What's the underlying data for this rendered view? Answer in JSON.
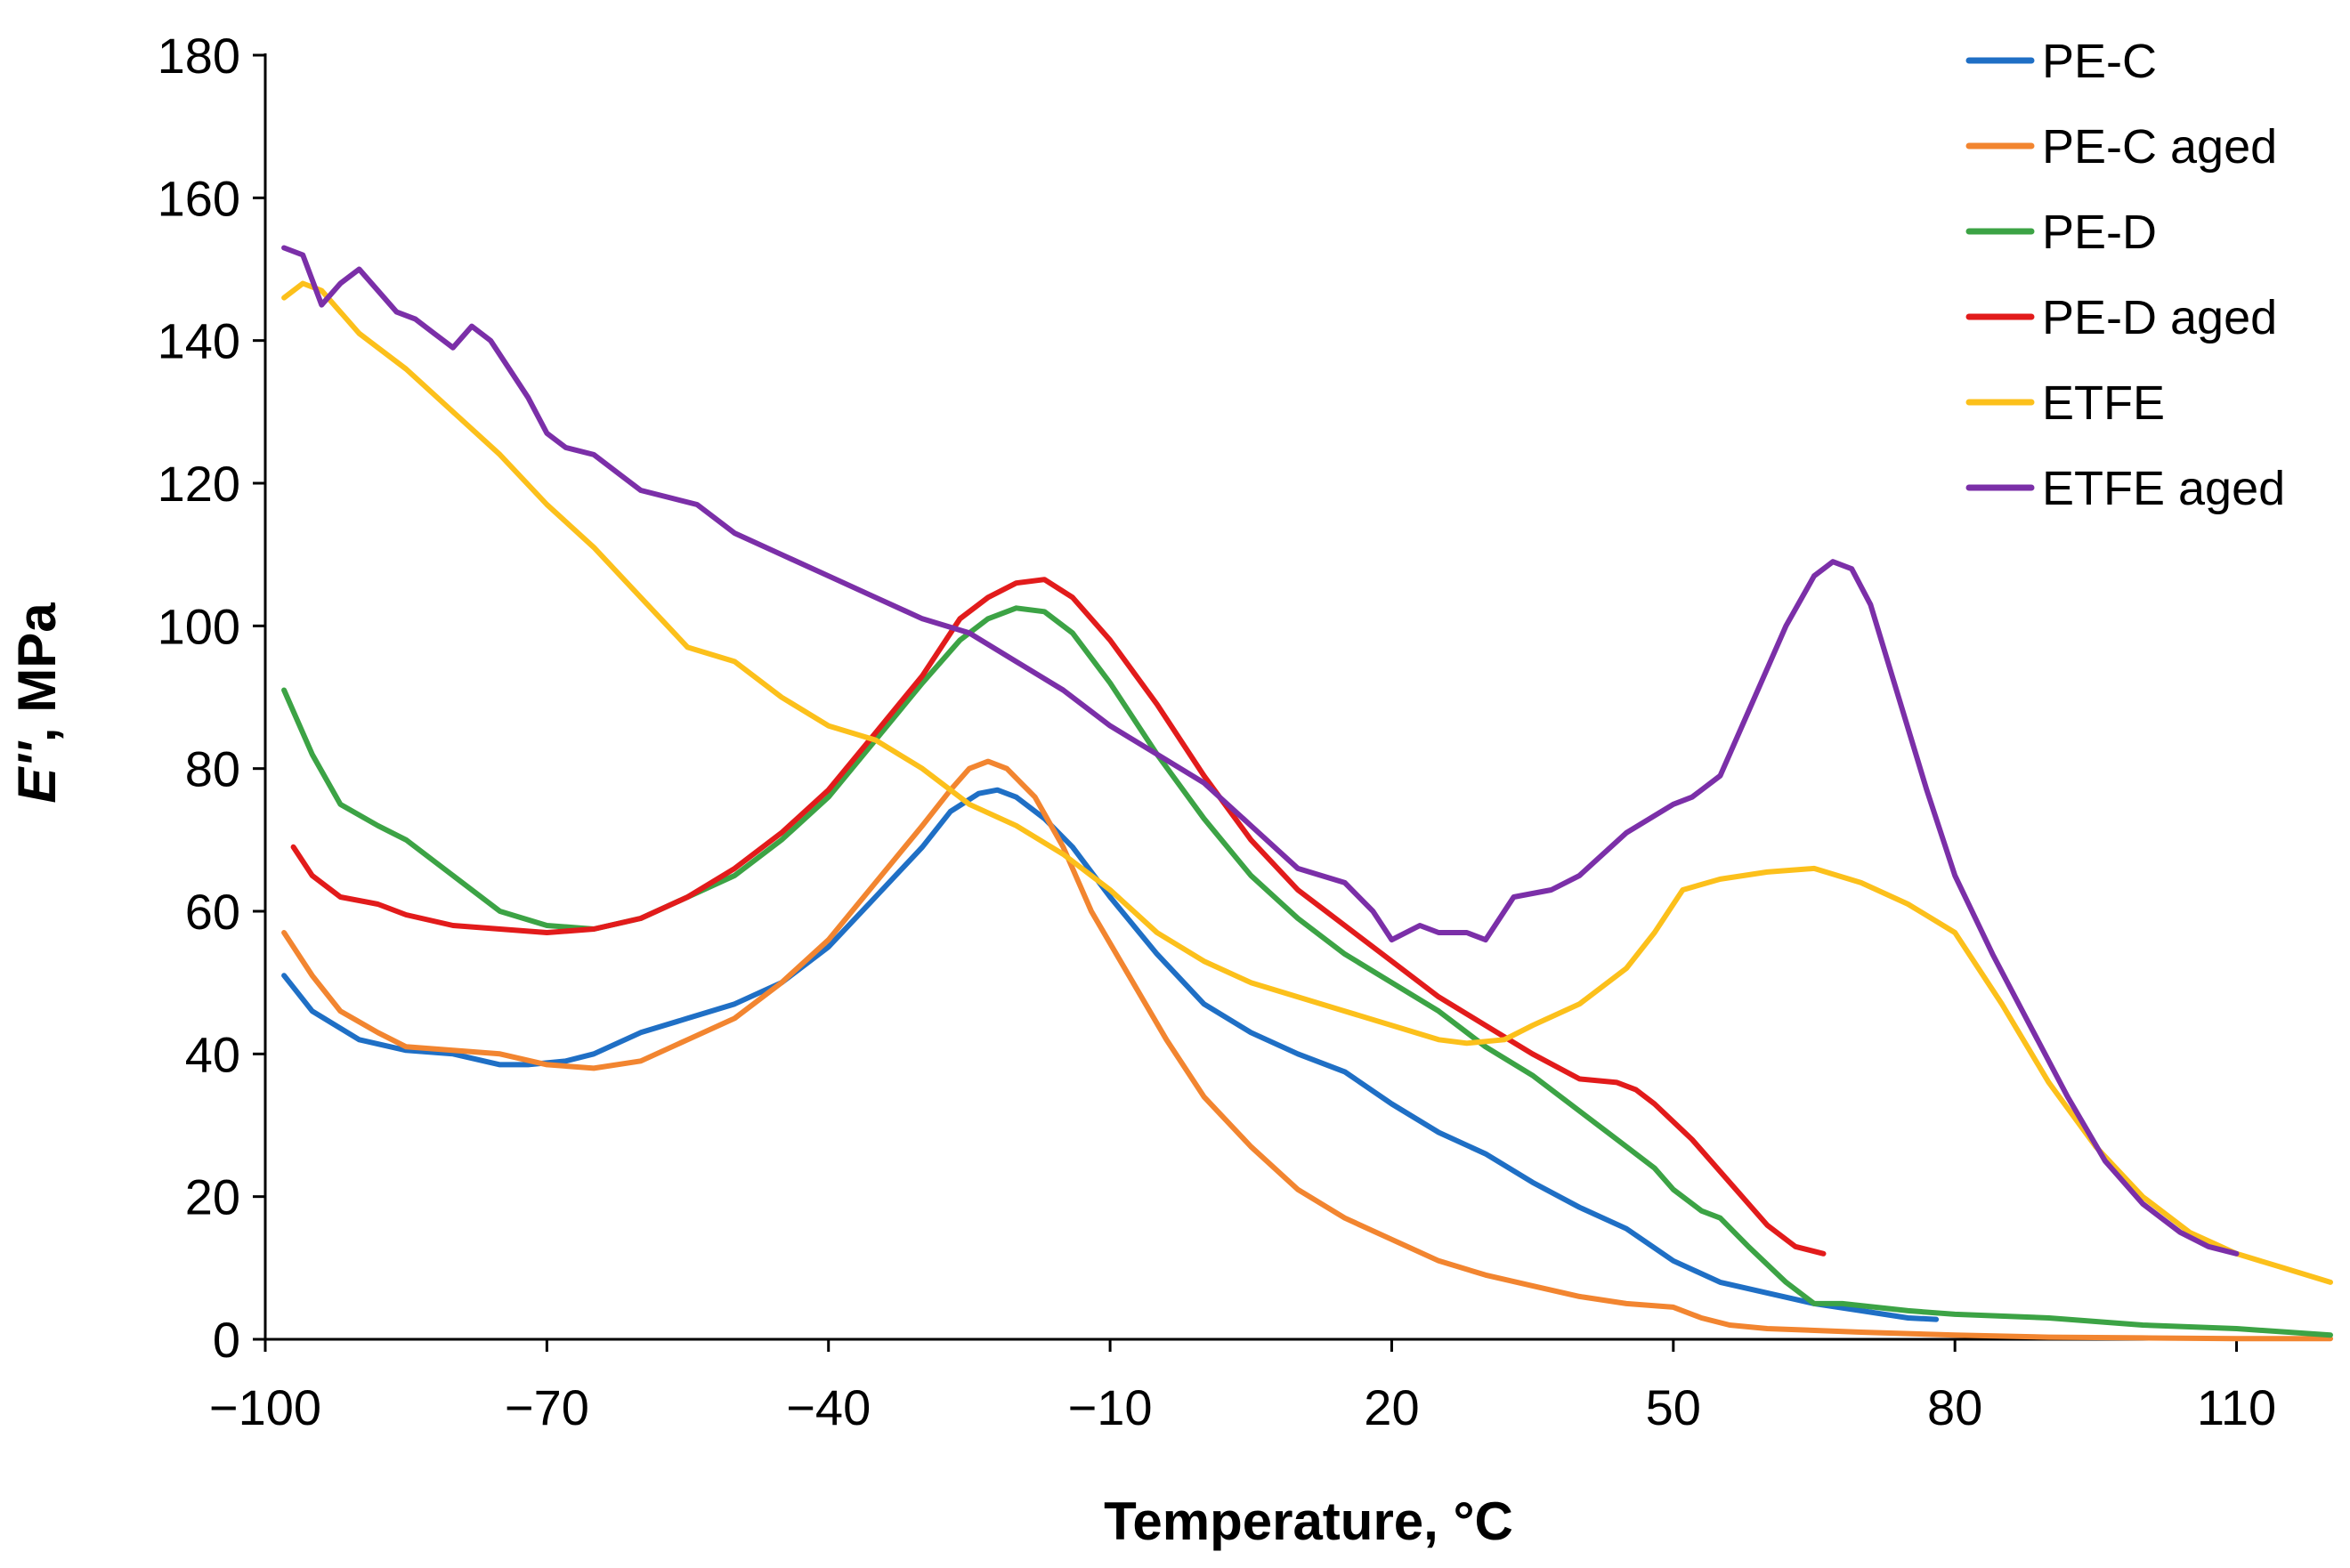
{
  "chart_data": {
    "type": "line",
    "title": "",
    "xlabel": "Temperature, °C",
    "ylabel_italic": "E''",
    "ylabel_rest": ", MPa",
    "xlim": [
      -100,
      120
    ],
    "ylim": [
      0,
      180
    ],
    "x_ticks": [
      -100,
      -70,
      -40,
      -10,
      20,
      50,
      80,
      110
    ],
    "x_tick_labels": [
      "−100",
      "−70",
      "−40",
      "−10",
      "20",
      "50",
      "80",
      "110"
    ],
    "y_ticks": [
      0,
      20,
      40,
      60,
      80,
      100,
      120,
      140,
      160,
      180
    ],
    "y_tick_labels": [
      "0",
      "20",
      "40",
      "60",
      "80",
      "100",
      "120",
      "140",
      "160",
      "180"
    ],
    "grid": false,
    "legend_position": "top-right",
    "series": [
      {
        "name": "PE-C",
        "color": "#1F6FC5",
        "points": [
          [
            -98,
            51
          ],
          [
            -95,
            46
          ],
          [
            -90,
            42
          ],
          [
            -85,
            40.5
          ],
          [
            -80,
            40
          ],
          [
            -75,
            38.5
          ],
          [
            -72,
            38.5
          ],
          [
            -68,
            39
          ],
          [
            -65,
            40
          ],
          [
            -60,
            43
          ],
          [
            -55,
            45
          ],
          [
            -50,
            47
          ],
          [
            -45,
            50
          ],
          [
            -40,
            55
          ],
          [
            -35,
            62
          ],
          [
            -30,
            69
          ],
          [
            -27,
            74
          ],
          [
            -24,
            76.5
          ],
          [
            -22,
            77
          ],
          [
            -20,
            76
          ],
          [
            -17,
            73
          ],
          [
            -14,
            69
          ],
          [
            -10,
            62
          ],
          [
            -5,
            54
          ],
          [
            0,
            47
          ],
          [
            5,
            43
          ],
          [
            10,
            40
          ],
          [
            15,
            37.5
          ],
          [
            20,
            33
          ],
          [
            25,
            29
          ],
          [
            30,
            26
          ],
          [
            35,
            22
          ],
          [
            40,
            18.5
          ],
          [
            45,
            15.5
          ],
          [
            50,
            11
          ],
          [
            55,
            8
          ],
          [
            60,
            6.5
          ],
          [
            65,
            5
          ],
          [
            70,
            4
          ],
          [
            75,
            3
          ],
          [
            78,
            2.8
          ]
        ]
      },
      {
        "name": "PE-C aged",
        "color": "#F28530",
        "points": [
          [
            -98,
            57
          ],
          [
            -95,
            51
          ],
          [
            -92,
            46
          ],
          [
            -88,
            43
          ],
          [
            -85,
            41
          ],
          [
            -80,
            40.5
          ],
          [
            -75,
            40
          ],
          [
            -70,
            38.5
          ],
          [
            -65,
            38
          ],
          [
            -60,
            39
          ],
          [
            -55,
            42
          ],
          [
            -50,
            45
          ],
          [
            -45,
            50
          ],
          [
            -40,
            56
          ],
          [
            -35,
            64
          ],
          [
            -30,
            72
          ],
          [
            -27,
            77
          ],
          [
            -25,
            80
          ],
          [
            -23,
            81
          ],
          [
            -21,
            80
          ],
          [
            -18,
            76
          ],
          [
            -15,
            69
          ],
          [
            -12,
            60
          ],
          [
            -8,
            51
          ],
          [
            -4,
            42
          ],
          [
            0,
            34
          ],
          [
            5,
            27
          ],
          [
            10,
            21
          ],
          [
            15,
            17
          ],
          [
            20,
            14
          ],
          [
            25,
            11
          ],
          [
            30,
            9
          ],
          [
            35,
            7.5
          ],
          [
            40,
            6
          ],
          [
            45,
            5
          ],
          [
            50,
            4.5
          ],
          [
            53,
            3
          ],
          [
            56,
            2
          ],
          [
            60,
            1.5
          ],
          [
            70,
            1
          ],
          [
            80,
            0.6
          ],
          [
            90,
            0.3
          ],
          [
            100,
            0.2
          ],
          [
            110,
            0.1
          ],
          [
            120,
            0.1
          ]
        ]
      },
      {
        "name": "PE-D",
        "color": "#3CA345",
        "points": [
          [
            -98,
            91
          ],
          [
            -95,
            82
          ],
          [
            -92,
            75
          ],
          [
            -88,
            72
          ],
          [
            -85,
            70
          ],
          [
            -80,
            65
          ],
          [
            -75,
            60
          ],
          [
            -70,
            58
          ],
          [
            -65,
            57.5
          ],
          [
            -60,
            59
          ],
          [
            -55,
            62
          ],
          [
            -50,
            65
          ],
          [
            -45,
            70
          ],
          [
            -40,
            76
          ],
          [
            -35,
            84
          ],
          [
            -30,
            92
          ],
          [
            -26,
            98
          ],
          [
            -23,
            101
          ],
          [
            -20,
            102.5
          ],
          [
            -17,
            102
          ],
          [
            -14,
            99
          ],
          [
            -10,
            92
          ],
          [
            -5,
            82
          ],
          [
            0,
            73
          ],
          [
            5,
            65
          ],
          [
            10,
            59
          ],
          [
            15,
            54
          ],
          [
            20,
            50
          ],
          [
            25,
            46
          ],
          [
            30,
            41
          ],
          [
            35,
            37
          ],
          [
            40,
            32
          ],
          [
            45,
            27
          ],
          [
            48,
            24
          ],
          [
            50,
            21
          ],
          [
            53,
            18
          ],
          [
            55,
            17
          ],
          [
            58,
            13
          ],
          [
            62,
            8
          ],
          [
            65,
            5
          ],
          [
            68,
            5
          ],
          [
            75,
            4
          ],
          [
            80,
            3.5
          ],
          [
            90,
            3
          ],
          [
            100,
            2
          ],
          [
            110,
            1.5
          ],
          [
            120,
            0.6
          ]
        ]
      },
      {
        "name": "PE-D aged",
        "color": "#E21B1B",
        "points": [
          [
            -97,
            69
          ],
          [
            -95,
            65
          ],
          [
            -92,
            62
          ],
          [
            -88,
            61
          ],
          [
            -85,
            59.5
          ],
          [
            -80,
            58
          ],
          [
            -75,
            57.5
          ],
          [
            -70,
            57
          ],
          [
            -65,
            57.5
          ],
          [
            -60,
            59
          ],
          [
            -55,
            62
          ],
          [
            -50,
            66
          ],
          [
            -45,
            71
          ],
          [
            -40,
            77
          ],
          [
            -35,
            85
          ],
          [
            -30,
            93
          ],
          [
            -26,
            101
          ],
          [
            -23,
            104
          ],
          [
            -20,
            106
          ],
          [
            -17,
            106.5
          ],
          [
            -14,
            104
          ],
          [
            -10,
            98
          ],
          [
            -5,
            89
          ],
          [
            0,
            79
          ],
          [
            5,
            70
          ],
          [
            10,
            63
          ],
          [
            15,
            58
          ],
          [
            20,
            53
          ],
          [
            25,
            48
          ],
          [
            30,
            44
          ],
          [
            35,
            40
          ],
          [
            40,
            36.5
          ],
          [
            44,
            36
          ],
          [
            46,
            35
          ],
          [
            48,
            33
          ],
          [
            52,
            28
          ],
          [
            56,
            22
          ],
          [
            60,
            16
          ],
          [
            63,
            13
          ],
          [
            66,
            12
          ]
        ]
      },
      {
        "name": "ETFE",
        "color": "#FCC01B",
        "points": [
          [
            -98,
            146
          ],
          [
            -96,
            148
          ],
          [
            -94,
            147
          ],
          [
            -90,
            141
          ],
          [
            -85,
            136
          ],
          [
            -80,
            130
          ],
          [
            -75,
            124
          ],
          [
            -70,
            117
          ],
          [
            -65,
            111
          ],
          [
            -60,
            104
          ],
          [
            -55,
            97
          ],
          [
            -50,
            95
          ],
          [
            -45,
            90
          ],
          [
            -40,
            86
          ],
          [
            -35,
            84
          ],
          [
            -30,
            80
          ],
          [
            -25,
            75
          ],
          [
            -20,
            72
          ],
          [
            -15,
            68
          ],
          [
            -10,
            63
          ],
          [
            -5,
            57
          ],
          [
            0,
            53
          ],
          [
            5,
            50
          ],
          [
            10,
            48
          ],
          [
            15,
            46
          ],
          [
            20,
            44
          ],
          [
            25,
            42
          ],
          [
            28,
            41.5
          ],
          [
            32,
            42
          ],
          [
            35,
            44
          ],
          [
            40,
            47
          ],
          [
            45,
            52
          ],
          [
            48,
            57
          ],
          [
            51,
            63
          ],
          [
            55,
            64.5
          ],
          [
            60,
            65.5
          ],
          [
            65,
            66
          ],
          [
            70,
            64
          ],
          [
            75,
            61
          ],
          [
            80,
            57
          ],
          [
            85,
            47
          ],
          [
            90,
            36
          ],
          [
            95,
            27
          ],
          [
            100,
            20
          ],
          [
            105,
            15
          ],
          [
            110,
            12
          ],
          [
            115,
            10
          ],
          [
            120,
            8
          ]
        ]
      },
      {
        "name": "ETFE aged",
        "color": "#7B2FA8",
        "points": [
          [
            -98,
            153
          ],
          [
            -96,
            152
          ],
          [
            -94,
            145
          ],
          [
            -92,
            148
          ],
          [
            -90,
            150
          ],
          [
            -88,
            147
          ],
          [
            -86,
            144
          ],
          [
            -84,
            143
          ],
          [
            -82,
            141
          ],
          [
            -80,
            139
          ],
          [
            -78,
            142
          ],
          [
            -76,
            140
          ],
          [
            -74,
            136
          ],
          [
            -72,
            132
          ],
          [
            -70,
            127
          ],
          [
            -68,
            125
          ],
          [
            -65,
            124
          ],
          [
            -62,
            121
          ],
          [
            -60,
            119
          ],
          [
            -57,
            118
          ],
          [
            -54,
            117
          ],
          [
            -50,
            113
          ],
          [
            -45,
            110
          ],
          [
            -40,
            107
          ],
          [
            -35,
            104
          ],
          [
            -30,
            101
          ],
          [
            -25,
            99
          ],
          [
            -20,
            95
          ],
          [
            -15,
            91
          ],
          [
            -10,
            86
          ],
          [
            -5,
            82
          ],
          [
            0,
            78
          ],
          [
            5,
            72
          ],
          [
            10,
            66
          ],
          [
            15,
            64
          ],
          [
            18,
            60
          ],
          [
            20,
            56
          ],
          [
            23,
            58
          ],
          [
            25,
            57
          ],
          [
            28,
            57
          ],
          [
            30,
            56
          ],
          [
            33,
            62
          ],
          [
            37,
            63
          ],
          [
            40,
            65
          ],
          [
            45,
            71
          ],
          [
            50,
            75
          ],
          [
            52,
            76
          ],
          [
            55,
            79
          ],
          [
            58,
            88
          ],
          [
            62,
            100
          ],
          [
            65,
            107
          ],
          [
            67,
            109
          ],
          [
            69,
            108
          ],
          [
            71,
            103
          ],
          [
            74,
            90
          ],
          [
            77,
            77
          ],
          [
            80,
            65
          ],
          [
            84,
            54
          ],
          [
            88,
            44
          ],
          [
            92,
            34
          ],
          [
            96,
            25
          ],
          [
            100,
            19
          ],
          [
            104,
            15
          ],
          [
            107,
            13
          ],
          [
            110,
            12
          ]
        ]
      }
    ]
  }
}
